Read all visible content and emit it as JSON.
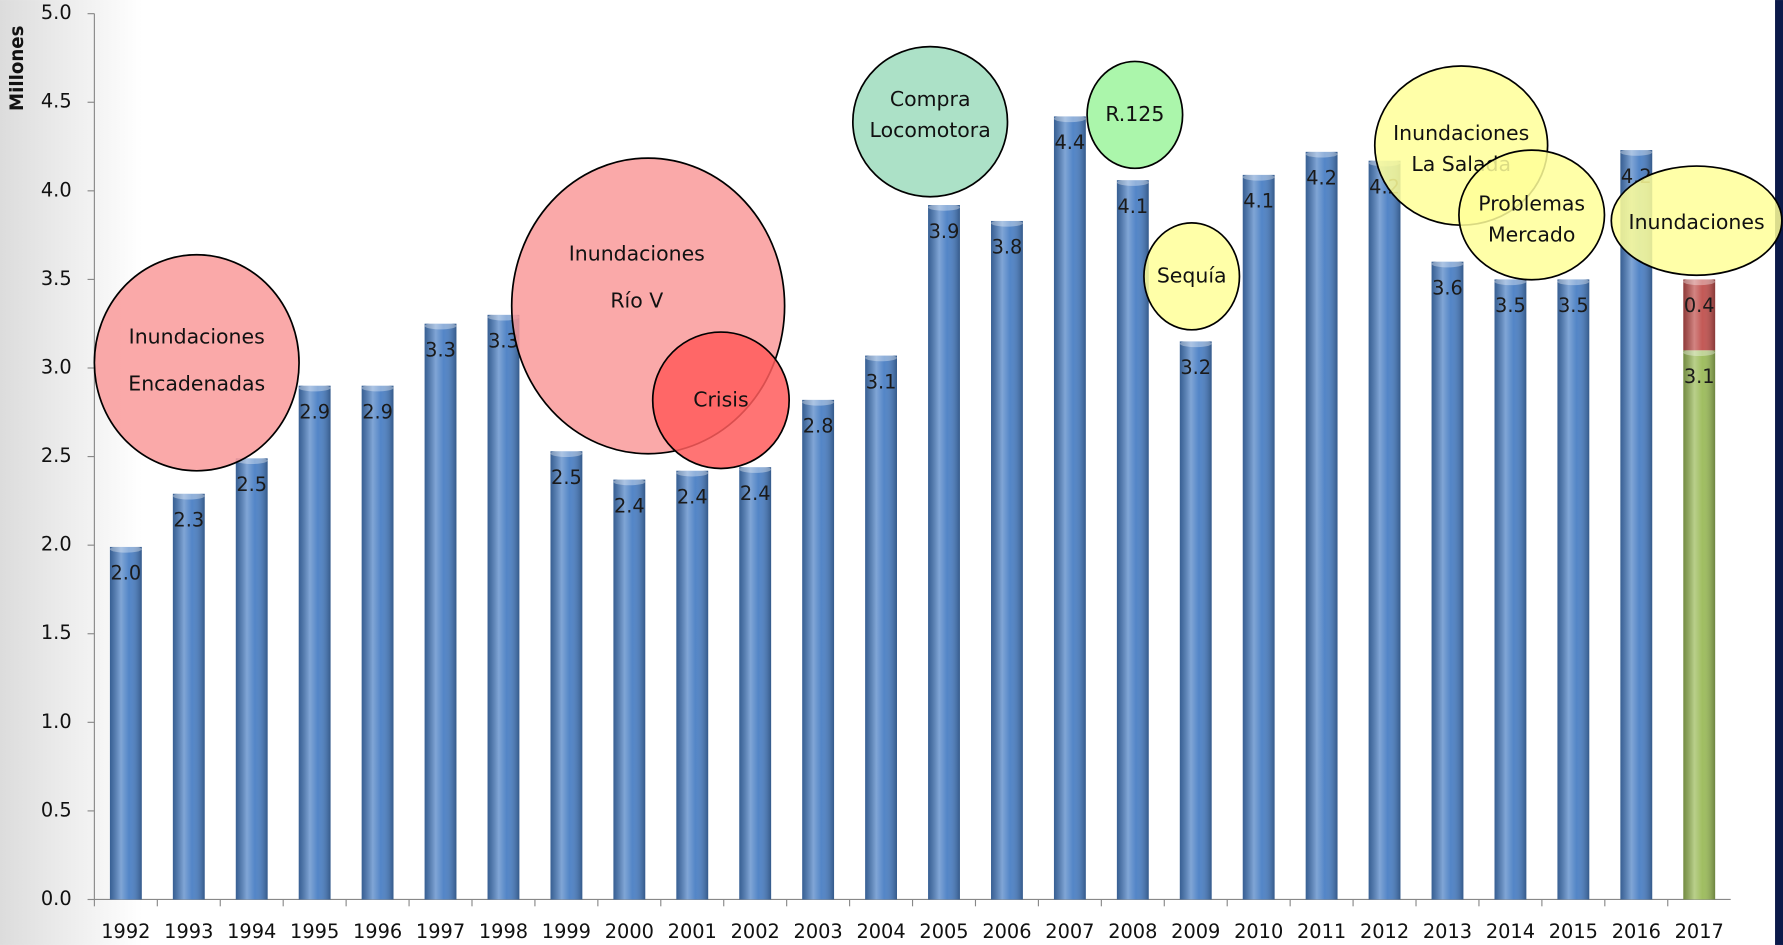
{
  "chart_data": {
    "type": "bar",
    "y_axis_label": "Millones",
    "categories": [
      "1992",
      "1993",
      "1994",
      "1995",
      "1996",
      "1997",
      "1998",
      "1999",
      "2000",
      "2001",
      "2002",
      "2003",
      "2004",
      "2005",
      "2006",
      "2007",
      "2008",
      "2009",
      "2010",
      "2011",
      "2012",
      "2013",
      "2014",
      "2015",
      "2016",
      "2017"
    ],
    "series": [
      {
        "color": "#4a7fc4",
        "values": [
          1.99,
          2.29,
          2.49,
          2.9,
          2.9,
          3.25,
          3.3,
          2.53,
          2.37,
          2.42,
          2.44,
          2.82,
          3.07,
          3.92,
          3.83,
          4.42,
          4.06,
          3.15,
          4.09,
          4.22,
          4.17,
          3.6,
          3.5,
          3.5,
          4.23,
          null
        ],
        "value_labels": [
          "2.0",
          "2.3",
          "2.5",
          "2.9",
          "2.9",
          "3.3",
          "3.3",
          "2.5",
          "2.4",
          "2.4",
          "2.4",
          "2.8",
          "3.1",
          "3.9",
          "3.8",
          "4.4",
          "4.1",
          "3.2",
          "4.1",
          "4.2",
          "4.2",
          "3.6",
          "3.5",
          "3.5",
          "4.2",
          null
        ]
      },
      {
        "color": "#9bbb59",
        "values": [
          null,
          null,
          null,
          null,
          null,
          null,
          null,
          null,
          null,
          null,
          null,
          null,
          null,
          null,
          null,
          null,
          null,
          null,
          null,
          null,
          null,
          null,
          null,
          null,
          null,
          3.1
        ],
        "value_labels": [
          null,
          null,
          null,
          null,
          null,
          null,
          null,
          null,
          null,
          null,
          null,
          null,
          null,
          null,
          null,
          null,
          null,
          null,
          null,
          null,
          null,
          null,
          null,
          null,
          null,
          "3.1"
        ]
      },
      {
        "color": "#c0504d",
        "values": [
          null,
          null,
          null,
          null,
          null,
          null,
          null,
          null,
          null,
          null,
          null,
          null,
          null,
          null,
          null,
          null,
          null,
          null,
          null,
          null,
          null,
          null,
          null,
          null,
          null,
          0.4
        ],
        "value_labels": [
          null,
          null,
          null,
          null,
          null,
          null,
          null,
          null,
          null,
          null,
          null,
          null,
          null,
          null,
          null,
          null,
          null,
          null,
          null,
          null,
          null,
          null,
          null,
          null,
          null,
          "0.4"
        ]
      }
    ],
    "ylim": [
      0,
      5
    ],
    "yticks": [
      {
        "value": 0,
        "label": "0.0"
      },
      {
        "value": 0.5,
        "label": "0.5"
      },
      {
        "value": 1,
        "label": "1.0"
      },
      {
        "value": 1.5,
        "label": "1.5"
      },
      {
        "value": 2,
        "label": "2.0"
      },
      {
        "value": 2.5,
        "label": "2.5"
      },
      {
        "value": 3,
        "label": "3.0"
      },
      {
        "value": 3.5,
        "label": "3.5"
      },
      {
        "value": 4,
        "label": "4.0"
      },
      {
        "value": 4.5,
        "label": "4.5"
      },
      {
        "value": 5,
        "label": "5.0"
      }
    ],
    "grid": false,
    "annotations": [
      {
        "lines": [
          "Inundaciones",
          "Encadenadas"
        ],
        "color": "#f99a9a"
      },
      {
        "lines": [
          "Inundaciones",
          "Río V"
        ],
        "color": "#f99a9a"
      },
      {
        "lines": [
          "Crisis"
        ],
        "color": "#ff5c5c"
      },
      {
        "lines": [
          "Compra",
          "Locomotora"
        ],
        "color": "#9edcbd"
      },
      {
        "lines": [
          "R.125"
        ],
        "color": "#9cf59c"
      },
      {
        "lines": [
          "Sequía"
        ],
        "color": "#ffff99"
      },
      {
        "lines": [
          "Inundaciones",
          "La Salada"
        ],
        "color": "#ffff99"
      },
      {
        "lines": [
          "Problemas",
          "Mercado"
        ],
        "color": "#ffff99"
      },
      {
        "lines": [
          "Inundaciones"
        ],
        "color": "#ffff99"
      }
    ]
  }
}
